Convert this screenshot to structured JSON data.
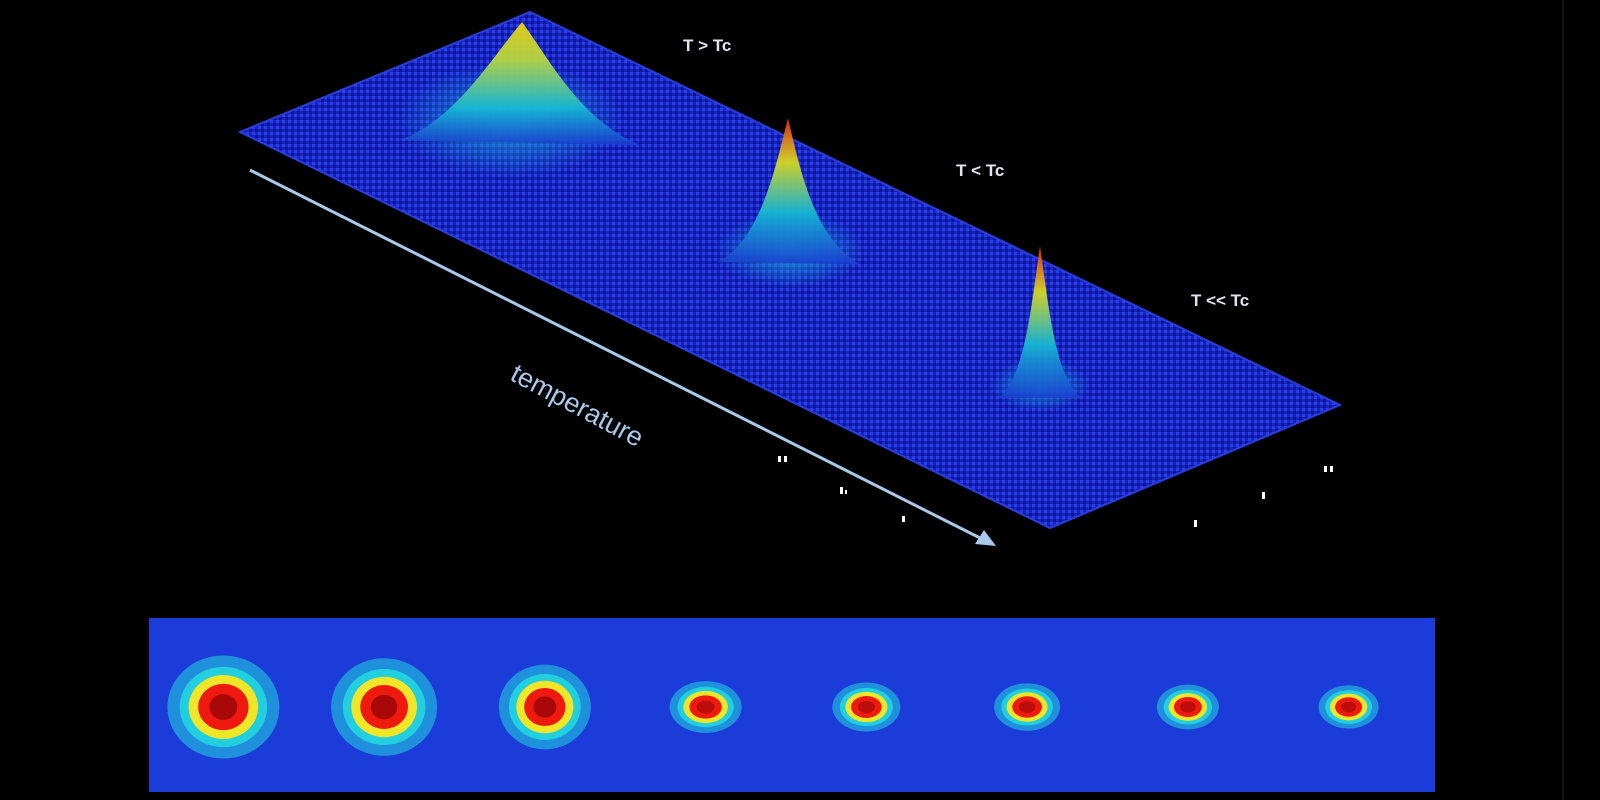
{
  "surface_plot": {
    "peaks": [
      {
        "label": "T > Tc"
      },
      {
        "label": "T < Tc"
      },
      {
        "label": "T << Tc"
      }
    ],
    "axis_label": "temperature",
    "colors": {
      "base": "#1426c8",
      "mid": "#16c4d8",
      "high": "#e8e020",
      "top": "#e02010",
      "arrow": "#a9c8ea"
    }
  },
  "absorption_images": {
    "count": 8,
    "colors": {
      "background": "#1b3cd8",
      "halo": "#22d6e0",
      "ring": "#f0e628",
      "core": "#ee1a10",
      "center": "#a80808"
    }
  }
}
